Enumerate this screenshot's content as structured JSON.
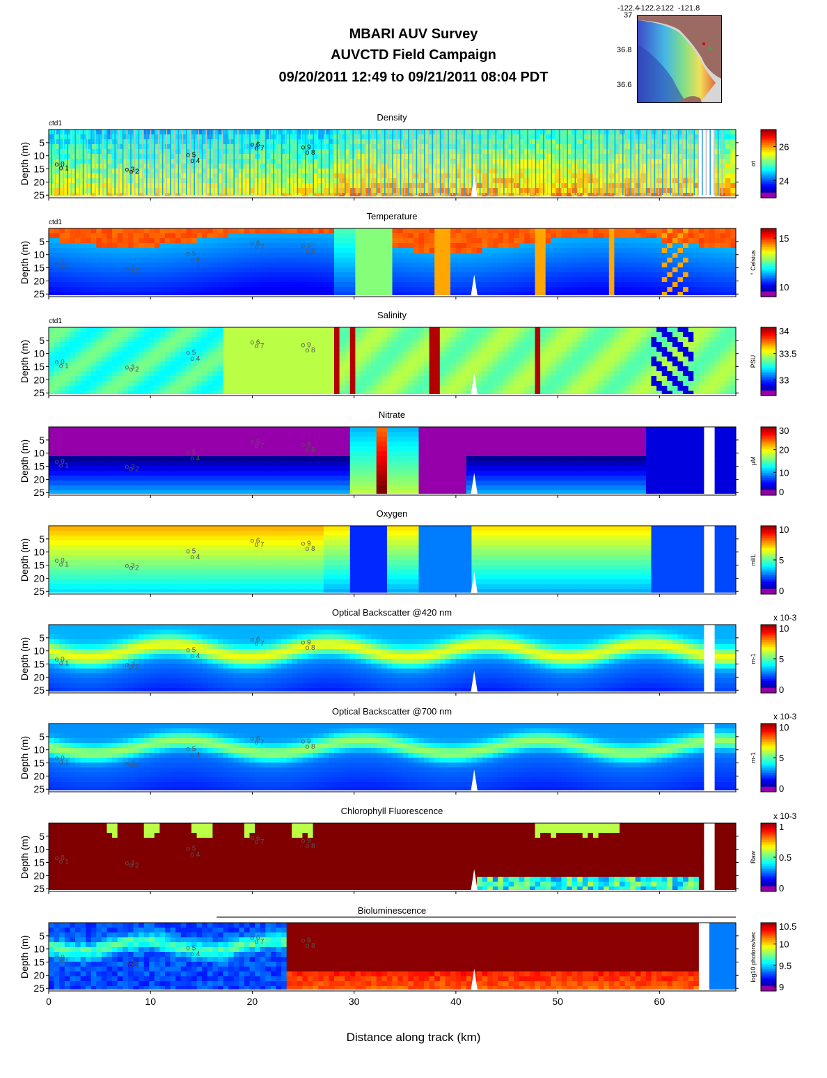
{
  "header": {
    "line1": "MBARI AUV Survey",
    "line2": "AUVCTD Field Campaign",
    "line3": "09/20/2011 12:49  to 09/21/2011 08:04 PDT"
  },
  "inset_map": {
    "lon_ticks": [
      "-122.4",
      "-122.2",
      "-122",
      "-121.8"
    ],
    "lat_ticks": [
      "37",
      "36.8",
      "36.6"
    ]
  },
  "colors": {
    "land": "#9b6b63",
    "ocean": "#d6d6d6",
    "white_gap": "#ffffff"
  },
  "chart_data": {
    "type": "heatmap",
    "xlabel": "Distance along track (km)",
    "x_ticks": [
      "0",
      "10",
      "20",
      "30",
      "40",
      "50",
      "60"
    ],
    "xlim": [
      0,
      67.5
    ],
    "y_ticks": [
      "5",
      "10",
      "15",
      "20",
      "25"
    ],
    "ylabel": "Depth (m)",
    "ylim": [
      0,
      26
    ],
    "station_labels": [
      "0",
      "1",
      "3",
      "2",
      "5",
      "4",
      "6",
      "7",
      "9",
      "8"
    ],
    "panels": [
      {
        "title": "Density",
        "source_label": "ctd1",
        "unit": "σt",
        "cbar_ticks": [
          "26",
          "24"
        ],
        "cbar_range": [
          23,
          27
        ],
        "multiplier": ""
      },
      {
        "title": "Temperature",
        "source_label": "ctd1",
        "unit": "° Celsius",
        "cbar_ticks": [
          "15",
          "10"
        ],
        "cbar_range": [
          9,
          16
        ],
        "multiplier": ""
      },
      {
        "title": "Salinity",
        "source_label": "ctd1",
        "unit": "PSU",
        "cbar_ticks": [
          "34",
          "33.5",
          "33"
        ],
        "cbar_range": [
          32.7,
          34
        ],
        "multiplier": ""
      },
      {
        "title": "Nitrate",
        "source_label": "",
        "unit": "µM",
        "cbar_ticks": [
          "30",
          "20",
          "10",
          "0"
        ],
        "cbar_range": [
          0,
          30
        ],
        "multiplier": ""
      },
      {
        "title": "Oxygen",
        "source_label": "",
        "unit": "ml/L",
        "cbar_ticks": [
          "10",
          "5",
          "0"
        ],
        "cbar_range": [
          0,
          10
        ],
        "multiplier": ""
      },
      {
        "title": "Optical Backscatter @420 nm",
        "source_label": "",
        "unit": "m-1",
        "cbar_ticks": [
          "10",
          "5",
          "0"
        ],
        "cbar_range": [
          0,
          10
        ],
        "multiplier": "x 10-3"
      },
      {
        "title": "Optical Backscatter @700 nm",
        "source_label": "",
        "unit": "m-1",
        "cbar_ticks": [
          "10",
          "5",
          "0"
        ],
        "cbar_range": [
          0,
          10
        ],
        "multiplier": "x 10-3"
      },
      {
        "title": "Chlorophyll Fluorescence",
        "source_label": "",
        "unit": "Raw",
        "cbar_ticks": [
          "1",
          "0.5",
          "0"
        ],
        "cbar_range": [
          0,
          1
        ],
        "multiplier": "x 10-3"
      },
      {
        "title": "Bioluminescence",
        "source_label": "",
        "unit": "log10 photons/sec",
        "cbar_ticks": [
          "10.5",
          "10",
          "9.5",
          "9"
        ],
        "cbar_range": [
          8.9,
          10.5
        ],
        "multiplier": ""
      }
    ]
  }
}
